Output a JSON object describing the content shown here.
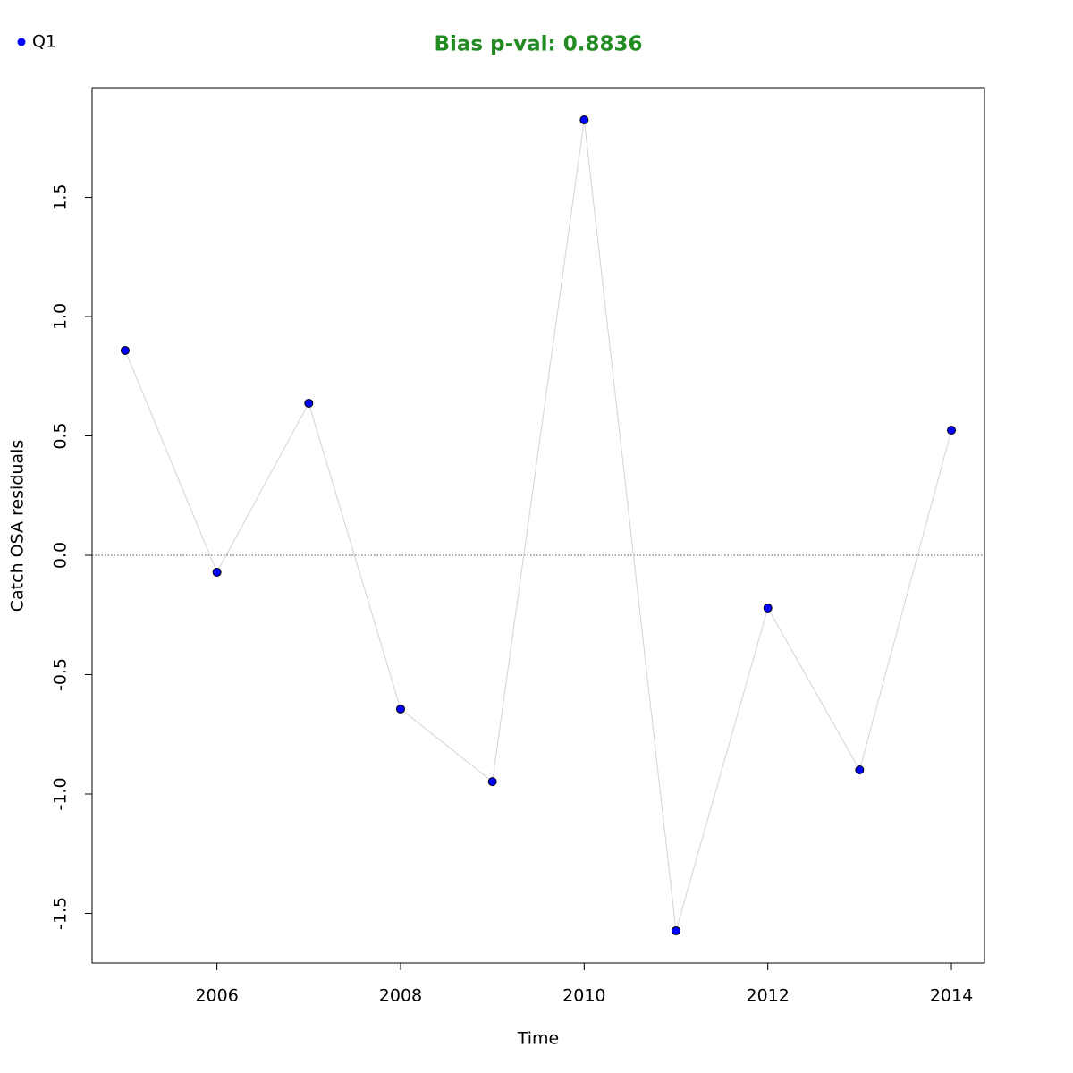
{
  "chart_data": {
    "type": "scatter",
    "title": "Bias p-val: 0.8836",
    "title_color": "#228b22",
    "x_label": "Time",
    "y_label": "Catch OSA residuals",
    "x": [
      2005,
      2006,
      2007,
      2008,
      2009,
      2010,
      2011,
      2012,
      2013,
      2014
    ],
    "series": [
      {
        "name": "Q1",
        "color": "#0000ff",
        "line_color": "#d3d3d3",
        "values": [
          0.858,
          -0.071,
          0.637,
          -0.644,
          -0.948,
          1.824,
          -1.573,
          -0.221,
          -0.899,
          0.524
        ]
      }
    ],
    "xlim": [
      2004.64,
      2014.36
    ],
    "xticks": [
      2006,
      2008,
      2010,
      2012,
      2014
    ],
    "ylim": [
      -1.708,
      1.959
    ],
    "yticks": [
      -1.5,
      {
        "value": -1,
        "label": "-1.0"
      },
      -0.5,
      {
        "value": 0,
        "label": "0.0"
      },
      0.5,
      {
        "value": 1,
        "label": "1.0"
      },
      1.5
    ],
    "hline": 0,
    "legend": "topleft",
    "grid": false
  }
}
